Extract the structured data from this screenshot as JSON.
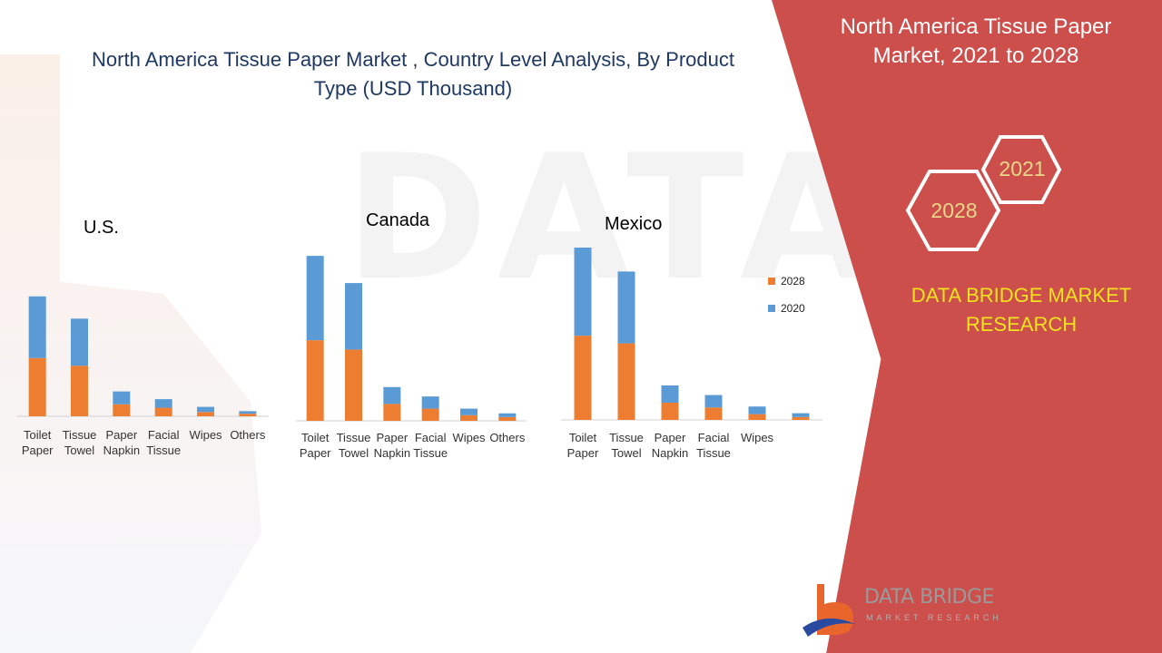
{
  "title": "North America Tissue Paper  Market , Country Level Analysis, By Product Type  (USD Thousand)",
  "panel": {
    "title": "North America Tissue Paper Market, 2021 to 2028",
    "hex_a": "2021",
    "hex_b": "2028",
    "brand": "DATA BRIDGE MARKET RESEARCH"
  },
  "logo": {
    "name": "DATA BRIDGE",
    "sub": "MARKET RESEARCH"
  },
  "colors": {
    "series_2028": "#ed7d31",
    "series_2020": "#5b9bd5",
    "panel": "#cc4f4c",
    "title": "#1f3864"
  },
  "legend": [
    "2028",
    "2020"
  ],
  "chart_data": [
    {
      "type": "bar",
      "title": "U.S.",
      "stacked": true,
      "categories": [
        "Toilet Paper",
        "Tissue Towel",
        "Paper Napkin",
        "Facial Tissue",
        "Wipes",
        "Others"
      ],
      "series": [
        {
          "name": "2028",
          "values": [
            68,
            59,
            14,
            10,
            5,
            3
          ]
        },
        {
          "name": "2020",
          "values": [
            72,
            55,
            15,
            10,
            6,
            3
          ]
        }
      ],
      "ylim": [
        0,
        180
      ]
    },
    {
      "type": "bar",
      "title": "Canada",
      "stacked": true,
      "categories": [
        "Toilet Paper",
        "Tissue Towel",
        "Paper Napkin",
        "Facial Tissue",
        "Wipes",
        "Others"
      ],
      "series": [
        {
          "name": "2028",
          "values": [
            86,
            76,
            18,
            13,
            6,
            4
          ]
        },
        {
          "name": "2020",
          "values": [
            90,
            71,
            18,
            13,
            7,
            4
          ]
        }
      ],
      "ylim": [
        0,
        180
      ]
    },
    {
      "type": "bar",
      "title": "Mexico",
      "stacked": true,
      "categories": [
        "Toilet Paper",
        "Tissue Towel",
        "Paper Napkin",
        "Facial Tissue",
        "Wipes",
        ""
      ],
      "series": [
        {
          "name": "2028",
          "values": [
            88,
            80,
            18,
            13,
            6,
            3
          ]
        },
        {
          "name": "2020",
          "values": [
            92,
            75,
            18,
            13,
            8,
            4
          ]
        }
      ],
      "ylim": [
        0,
        180
      ]
    }
  ]
}
